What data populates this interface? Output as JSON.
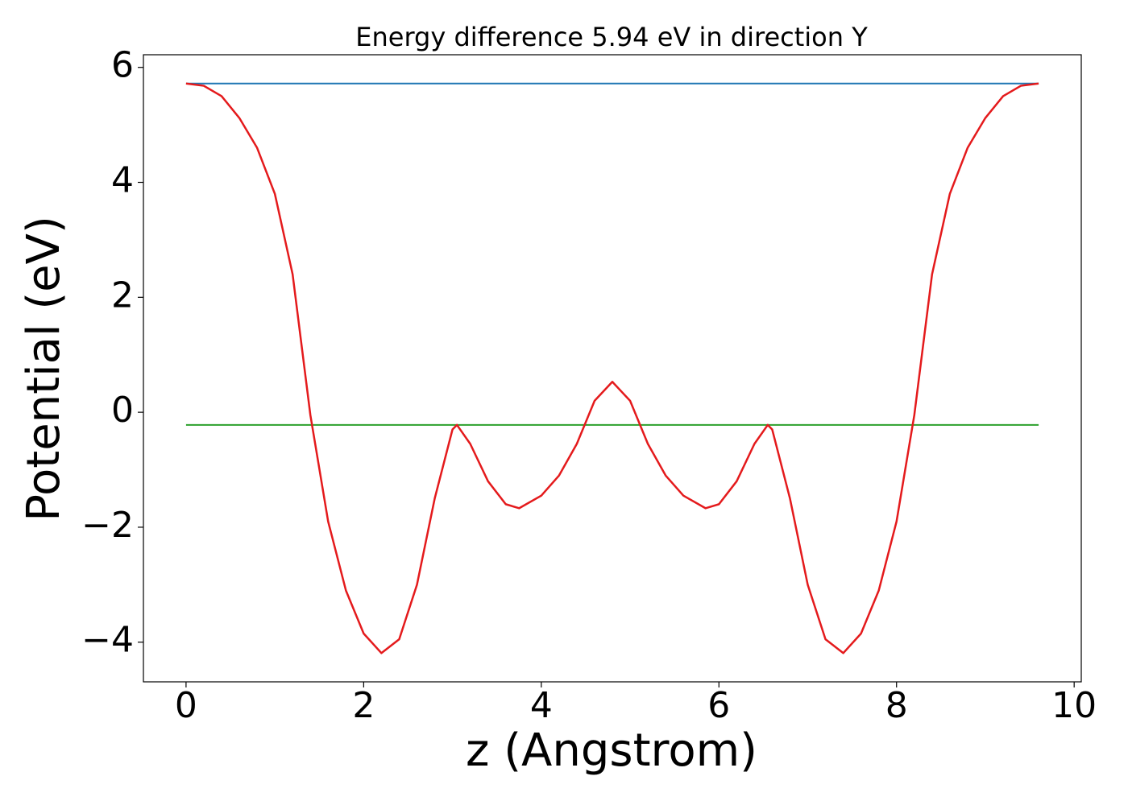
{
  "chart_data": {
    "type": "line",
    "title": "Energy difference 5.94 eV in direction Y",
    "xlabel": "z (Angstrom)",
    "ylabel": "Potential (eV)",
    "xlim": [
      -0.48,
      10.08
    ],
    "ylim": [
      -4.69,
      6.22
    ],
    "xticks": [
      0,
      2,
      4,
      6,
      8,
      10
    ],
    "yticks": [
      {
        "value": -4,
        "label": "−4"
      },
      {
        "value": -2,
        "label": "−2"
      },
      0,
      2,
      4,
      6
    ],
    "grid": false,
    "series": [
      {
        "color": "#1f77b4",
        "x": [
          0,
          9.6
        ],
        "values": [
          5.72,
          5.72
        ]
      },
      {
        "color": "#2ca02c",
        "x": [
          0,
          9.6
        ],
        "values": [
          -0.22,
          -0.22
        ]
      },
      {
        "color": "#e41a1c",
        "x": [
          0,
          0.2,
          0.4,
          0.6,
          0.8,
          1.0,
          1.2,
          1.4,
          1.6,
          1.8,
          2.0,
          2.2,
          2.4,
          2.6,
          2.8,
          3.0,
          3.05,
          3.2,
          3.4,
          3.6,
          3.75,
          4.0,
          4.2,
          4.4,
          4.6,
          4.8,
          5.0,
          5.2,
          5.4,
          5.6,
          5.85,
          6.0,
          6.2,
          6.4,
          6.55,
          6.6,
          6.8,
          7.0,
          7.2,
          7.4,
          7.6,
          7.8,
          8.0,
          8.2,
          8.4,
          8.6,
          8.8,
          9.0,
          9.2,
          9.4,
          9.6
        ],
        "values": [
          5.72,
          5.68,
          5.5,
          5.12,
          4.6,
          3.8,
          2.4,
          -0.05,
          -1.9,
          -3.1,
          -3.85,
          -4.19,
          -3.95,
          -3.0,
          -1.5,
          -0.3,
          -0.22,
          -0.55,
          -1.2,
          -1.6,
          -1.67,
          -1.45,
          -1.1,
          -0.55,
          0.2,
          0.53,
          0.2,
          -0.55,
          -1.1,
          -1.45,
          -1.67,
          -1.6,
          -1.2,
          -0.55,
          -0.22,
          -0.3,
          -1.5,
          -3.0,
          -3.95,
          -4.19,
          -3.85,
          -3.1,
          -1.9,
          -0.05,
          2.4,
          3.8,
          4.6,
          5.12,
          5.5,
          5.68,
          5.72
        ]
      }
    ]
  }
}
